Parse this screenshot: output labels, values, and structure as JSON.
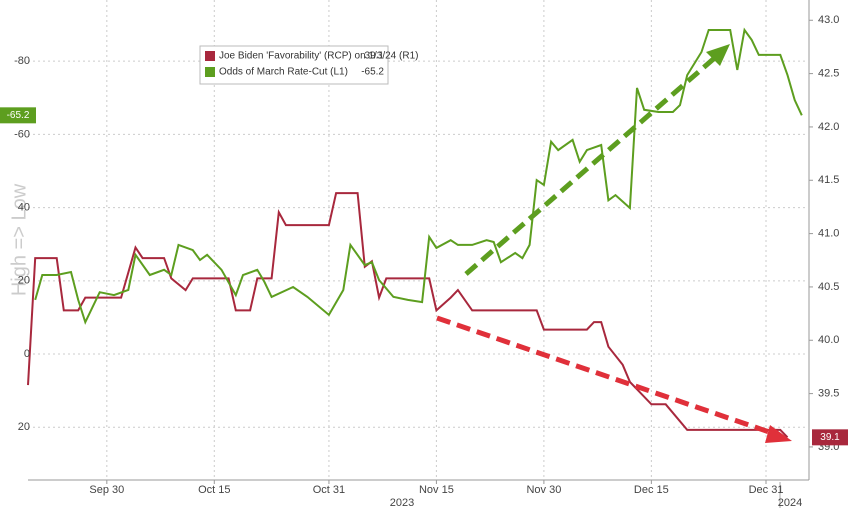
{
  "chart_data": {
    "type": "line",
    "axis_label": "High => Low",
    "annotations": [
      "2023",
      "2024"
    ],
    "xlim": [
      "2023-09-19",
      "2024-01-06"
    ],
    "xticks": [
      {
        "value": "2023-09-30",
        "label": "Sep 30"
      },
      {
        "value": "2023-10-15",
        "label": "Oct 15"
      },
      {
        "value": "2023-10-31",
        "label": "Oct 31"
      },
      {
        "value": "2023-11-15",
        "label": "Nov 15"
      },
      {
        "value": "2023-11-30",
        "label": "Nov 30"
      },
      {
        "value": "2023-12-15",
        "label": "Dec 15"
      },
      {
        "value": "2023-12-31",
        "label": "Dec 31"
      }
    ],
    "ylim": [
      34.4,
      -96.7
    ],
    "yticks": [
      -80,
      -60,
      {
        "value": -40,
        "label": "40"
      },
      {
        "value": -20,
        "label": "20"
      },
      0,
      20
    ],
    "y2lim": [
      38.69,
      43.19
    ],
    "y2ticks": [
      {
        "value": 43,
        "label": "43.0"
      },
      42.5,
      {
        "value": 42,
        "label": "42.0"
      },
      41.5,
      {
        "value": 41,
        "label": "41.0"
      },
      40.5,
      {
        "value": 40,
        "label": "40.0"
      },
      39.5,
      {
        "value": 39,
        "label": "39.0"
      }
    ],
    "grid": true,
    "series": [
      {
        "name": "Joe Biden 'Favorability' (RCP) on 1/3/24 (R1)",
        "last_label": "39.1",
        "color": "#a8283d",
        "axis": "y2",
        "x": [
          "2023-09-19",
          "2023-09-20",
          "2023-09-23",
          "2023-09-24",
          "2023-09-26",
          "2023-09-27",
          "2023-10-02",
          "2023-10-04",
          "2023-10-05",
          "2023-10-08",
          "2023-10-09",
          "2023-10-11",
          "2023-10-12",
          "2023-10-17",
          "2023-10-18",
          "2023-10-20",
          "2023-10-21",
          "2023-10-23",
          "2023-10-24",
          "2023-10-25",
          "2023-10-31",
          "2023-11-01",
          "2023-11-04",
          "2023-11-05",
          "2023-11-06",
          "2023-11-07",
          "2023-11-08",
          "2023-11-14",
          "2023-11-15",
          "2023-11-17",
          "2023-11-18",
          "2023-11-20",
          "2023-11-29",
          "2023-11-30",
          "2023-12-06",
          "2023-12-07",
          "2023-12-08",
          "2023-12-09",
          "2023-12-11",
          "2023-12-12",
          "2023-12-15",
          "2023-12-17",
          "2023-12-20",
          "2024-01-02",
          "2024-01-03"
        ],
        "values": [
          39.58,
          40.77,
          40.77,
          40.28,
          40.28,
          40.4,
          40.4,
          40.87,
          40.77,
          40.77,
          40.58,
          40.47,
          40.58,
          40.58,
          40.28,
          40.28,
          40.58,
          40.58,
          41.2,
          41.08,
          41.08,
          41.38,
          41.38,
          40.69,
          40.74,
          40.4,
          40.58,
          40.58,
          40.28,
          40.4,
          40.47,
          40.28,
          40.28,
          40.1,
          40.1,
          40.17,
          40.17,
          39.94,
          39.77,
          39.61,
          39.4,
          39.4,
          39.16,
          39.16,
          39.09
        ]
      },
      {
        "name": "Odds of March Rate-Cut (L1)",
        "last_label": "-65.2",
        "color": "#5d9e1f",
        "axis": "y",
        "x": [
          "2023-09-20",
          "2023-09-21",
          "2023-09-23",
          "2023-09-25",
          "2023-09-26",
          "2023-09-27",
          "2023-09-29",
          "2023-10-01",
          "2023-10-03",
          "2023-10-04",
          "2023-10-06",
          "2023-10-08",
          "2023-10-09",
          "2023-10-10",
          "2023-10-12",
          "2023-10-13",
          "2023-10-14",
          "2023-10-16",
          "2023-10-18",
          "2023-10-19",
          "2023-10-21",
          "2023-10-22",
          "2023-10-23",
          "2023-10-26",
          "2023-10-28",
          "2023-10-31",
          "2023-11-02",
          "2023-11-03",
          "2023-11-05",
          "2023-11-06",
          "2023-11-07",
          "2023-11-09",
          "2023-11-11",
          "2023-11-13",
          "2023-11-14",
          "2023-11-15",
          "2023-11-17",
          "2023-11-18",
          "2023-11-20",
          "2023-11-22",
          "2023-11-23",
          "2023-11-24",
          "2023-11-26",
          "2023-11-27",
          "2023-11-28",
          "2023-11-29",
          "2023-11-30",
          "2023-12-01",
          "2023-12-02",
          "2023-12-04",
          "2023-12-05",
          "2023-12-06",
          "2023-12-08",
          "2023-12-09",
          "2023-12-10",
          "2023-12-12",
          "2023-12-13",
          "2023-12-14",
          "2023-12-16",
          "2023-12-18",
          "2023-12-19",
          "2023-12-20",
          "2023-12-22",
          "2023-12-23",
          "2023-12-25",
          "2023-12-26",
          "2023-12-27",
          "2023-12-28",
          "2023-12-29",
          "2023-12-30",
          "2023-12-31",
          "2024-01-02",
          "2024-01-03",
          "2024-01-04",
          "2024-01-05"
        ],
        "values": [
          -14.8,
          -21.6,
          -21.6,
          -22.4,
          -14.8,
          -8.7,
          -16.9,
          -16.1,
          -17.5,
          -27.1,
          -21.6,
          -23,
          -21.6,
          -29.8,
          -28.4,
          -25.7,
          -27.1,
          -23,
          -16.1,
          -21.6,
          -23,
          -19.7,
          -15.6,
          -18.3,
          -15.6,
          -10.7,
          -17.5,
          -29.8,
          -24.3,
          -25.1,
          -20.2,
          -15.6,
          -14.8,
          -14.2,
          -32,
          -29,
          -31.1,
          -29.8,
          -29.8,
          -31.1,
          -30.6,
          -25.1,
          -27.6,
          -26.2,
          -29.8,
          -47.5,
          -46.2,
          -58,
          -55.7,
          -58.5,
          -52.5,
          -55.7,
          -57.1,
          -42,
          -43.4,
          -39.9,
          -72.7,
          -66.7,
          -66.1,
          -66.1,
          -68,
          -76.2,
          -82.5,
          -88.5,
          -88.5,
          -88.5,
          -77.6,
          -88.5,
          -85.8,
          -81.7,
          -81.7,
          -81.7,
          -76.2,
          -69.4,
          -65.2
        ]
      }
    ]
  }
}
